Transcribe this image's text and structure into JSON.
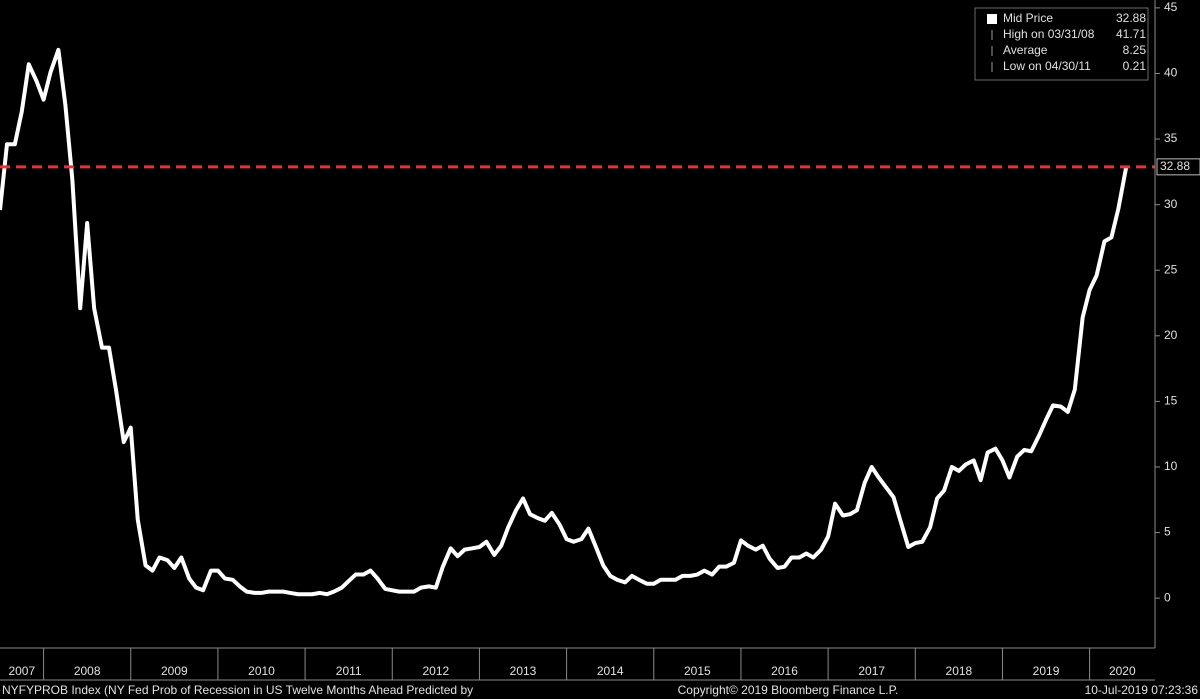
{
  "chart_data": {
    "type": "line",
    "x": [
      2007.5,
      2007.58,
      2007.67,
      2007.75,
      2007.83,
      2007.92,
      2008,
      2008.08,
      2008.17,
      2008.25,
      2008.33,
      2008.42,
      2008.5,
      2008.58,
      2008.67,
      2008.75,
      2008.83,
      2008.92,
      2009,
      2009.08,
      2009.17,
      2009.25,
      2009.33,
      2009.42,
      2009.5,
      2009.58,
      2009.67,
      2009.75,
      2009.83,
      2009.92,
      2010,
      2010.08,
      2010.17,
      2010.25,
      2010.33,
      2010.42,
      2010.5,
      2010.58,
      2010.67,
      2010.75,
      2010.83,
      2010.92,
      2011,
      2011.08,
      2011.17,
      2011.25,
      2011.33,
      2011.42,
      2011.5,
      2011.58,
      2011.67,
      2011.75,
      2011.83,
      2011.92,
      2012,
      2012.08,
      2012.17,
      2012.25,
      2012.33,
      2012.42,
      2012.5,
      2012.58,
      2012.67,
      2012.75,
      2012.83,
      2012.92,
      2013,
      2013.08,
      2013.17,
      2013.25,
      2013.33,
      2013.42,
      2013.5,
      2013.58,
      2013.67,
      2013.75,
      2013.83,
      2013.92,
      2014,
      2014.08,
      2014.17,
      2014.25,
      2014.33,
      2014.42,
      2014.5,
      2014.58,
      2014.67,
      2014.75,
      2014.83,
      2014.92,
      2015,
      2015.08,
      2015.17,
      2015.25,
      2015.33,
      2015.42,
      2015.5,
      2015.58,
      2015.67,
      2015.75,
      2015.83,
      2015.92,
      2016,
      2016.08,
      2016.17,
      2016.25,
      2016.33,
      2016.42,
      2016.5,
      2016.58,
      2016.67,
      2016.75,
      2016.83,
      2016.92,
      2017,
      2017.08,
      2017.17,
      2017.25,
      2017.33,
      2017.42,
      2017.5,
      2017.58,
      2017.67,
      2017.75,
      2017.83,
      2017.92,
      2018,
      2018.08,
      2018.17,
      2018.25,
      2018.33,
      2018.42,
      2018.5,
      2018.58,
      2018.67,
      2018.75,
      2018.83,
      2018.92,
      2019,
      2019.08,
      2019.17,
      2019.25,
      2019.33,
      2019.42,
      2019.5,
      2019.58,
      2019.67,
      2019.75,
      2019.83,
      2019.92,
      2020,
      2020.08,
      2020.17,
      2020.25,
      2020.33,
      2020.42
    ],
    "series": [
      {
        "name": "Mid Price",
        "color": "#ffffff",
        "values": [
          29.6,
          34.6,
          34.6,
          37.1,
          40.7,
          39.4,
          38,
          40.1,
          41.8,
          37.6,
          31.9,
          22.1,
          28.6,
          22.1,
          19.1,
          19.1,
          15.9,
          11.9,
          13,
          6,
          2.5,
          2.1,
          3.1,
          2.9,
          2.3,
          3.1,
          1.5,
          0.8,
          0.6,
          2.1,
          2.1,
          1.5,
          1.4,
          0.9,
          0.5,
          0.4,
          0.4,
          0.5,
          0.5,
          0.5,
          0.4,
          0.3,
          0.3,
          0.3,
          0.4,
          0.3,
          0.5,
          0.8,
          1.3,
          1.8,
          1.8,
          2.1,
          1.5,
          0.7,
          0.6,
          0.5,
          0.5,
          0.5,
          0.8,
          0.9,
          0.8,
          2.4,
          3.8,
          3.2,
          3.7,
          3.8,
          3.9,
          4.3,
          3.3,
          4,
          5.4,
          6.7,
          7.6,
          6.4,
          6.1,
          5.9,
          6.5,
          5.6,
          4.5,
          4.3,
          4.5,
          5.3,
          4,
          2.5,
          1.7,
          1.4,
          1.2,
          1.7,
          1.4,
          1.1,
          1.1,
          1.4,
          1.4,
          1.4,
          1.7,
          1.7,
          1.8,
          2.1,
          1.8,
          2.4,
          2.4,
          2.7,
          4.4,
          4,
          3.7,
          4,
          3,
          2.3,
          2.4,
          3.1,
          3.1,
          3.4,
          3.1,
          3.7,
          4.7,
          7.2,
          6.3,
          6.4,
          6.7,
          8.8,
          10,
          9.2,
          8.4,
          7.7,
          5.9,
          3.9,
          4.2,
          4.3,
          5.4,
          7.6,
          8.2,
          10,
          9.7,
          10.2,
          10.5,
          9,
          11.1,
          11.4,
          10.5,
          9.2,
          10.8,
          11.3,
          11.2,
          12.4,
          13.6,
          14.7,
          14.6,
          14.2,
          15.9,
          21.4,
          23.5,
          24.6,
          27.2,
          27.5,
          29.7,
          32.88
        ]
      }
    ],
    "last_line_color": "#e8323c",
    "xlim": [
      2007.5,
      2020.75
    ],
    "xticks": [
      2007,
      2008,
      2009,
      2010,
      2011,
      2012,
      2013,
      2014,
      2015,
      2016,
      2017,
      2018,
      2019,
      2020
    ],
    "ylim": [
      -3.8,
      45.6
    ],
    "yticks": [
      0,
      5,
      10,
      15,
      20,
      25,
      30,
      35,
      40,
      45
    ],
    "grid": false,
    "legend": [
      {
        "label": "Mid Price",
        "value": 32.88
      },
      {
        "label": "High on 03/31/08",
        "value": 41.71
      },
      {
        "label": "Average",
        "value": 8.25
      },
      {
        "label": "Low on 04/30/11",
        "value": 0.21
      }
    ],
    "footer": {
      "left": "NYFYPROB Index (NY Fed Prob of Recession in US Twelve Months Ahead Predicted by",
      "center": "Copyright© 2019 Bloomberg Finance L.P.",
      "right": "10-Jul-2019 07:23:36"
    }
  }
}
